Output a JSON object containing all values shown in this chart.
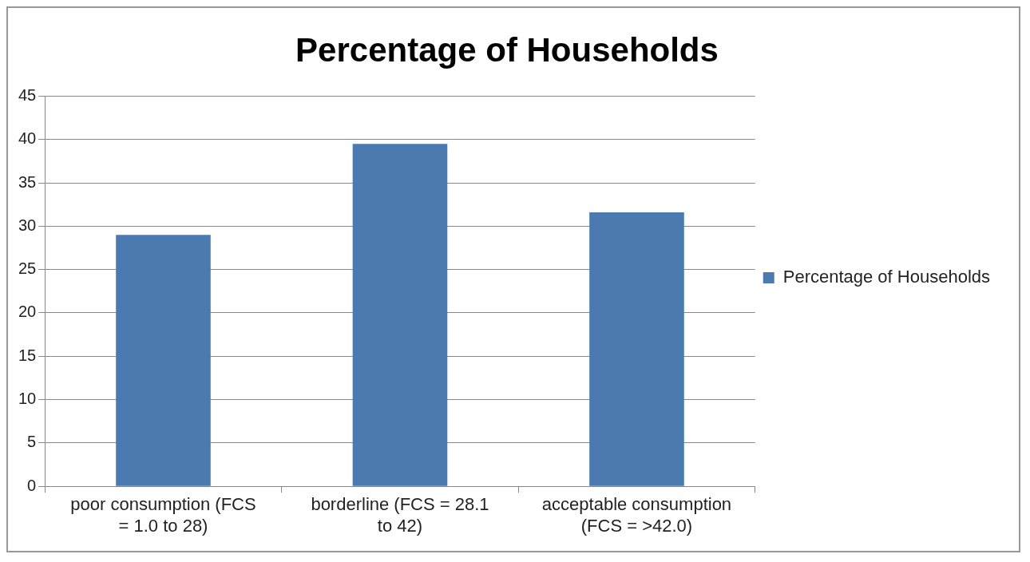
{
  "chart_data": {
    "type": "bar",
    "title": "Percentage of Households",
    "categories": [
      "poor consumption (FCS = 1.0 to 28)",
      "borderline (FCS = 28.1 to 42)",
      "acceptable consumption (FCS = >42.0)"
    ],
    "series": [
      {
        "name": "Percentage of Households",
        "color": "#4a7ab0",
        "values": [
          29,
          39.5,
          31.6
        ]
      }
    ],
    "ylim": [
      0,
      45
    ],
    "yticks": [
      0,
      5,
      10,
      15,
      20,
      25,
      30,
      35,
      40,
      45
    ],
    "grid": "y",
    "legend": "right"
  }
}
